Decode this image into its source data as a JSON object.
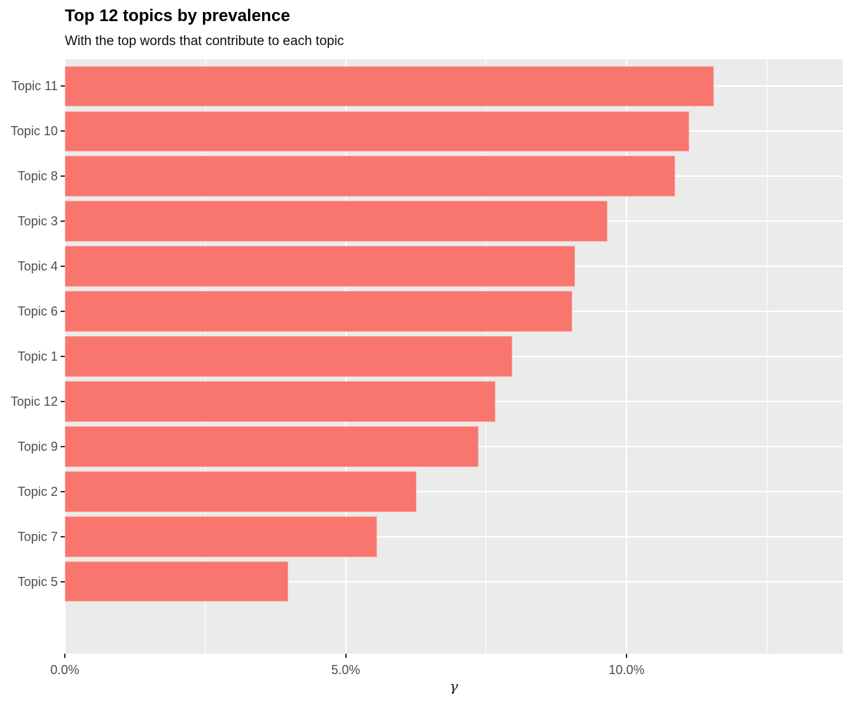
{
  "title": "Top 12 topics by prevalence",
  "subtitle": "With the top words that contribute to each topic",
  "chart_data": {
    "type": "bar",
    "orientation": "horizontal",
    "title": "Top 12 topics by prevalence",
    "subtitle": "With the top words that contribute to each topic",
    "categories": [
      "Topic 11",
      "Topic 10",
      "Topic 8",
      "Topic 3",
      "Topic 4",
      "Topic 6",
      "Topic 1",
      "Topic 12",
      "Topic 9",
      "Topic 2",
      "Topic 7",
      "Topic 5"
    ],
    "values": [
      11.56,
      11.12,
      10.87,
      9.66,
      9.08,
      9.03,
      7.97,
      7.67,
      7.36,
      6.26,
      5.56,
      3.98
    ],
    "value_unit": "%",
    "xlabel": "γ",
    "ylabel": "",
    "xlim": [
      0,
      13.85
    ],
    "x_major_ticks": [
      {
        "value": 0,
        "label": "0.0%"
      },
      {
        "value": 5,
        "label": "5.0%"
      },
      {
        "value": 10,
        "label": "10.0%"
      }
    ],
    "x_minor_ticks": [
      2.5,
      7.5,
      12.5
    ],
    "grid": "on",
    "legend": "none",
    "colors": {
      "bar_fill": "#F8766D",
      "bar_edge": "#FBA8A1",
      "panel_background": "#EBEBEB",
      "gridline": "#FFFFFF",
      "axis_text": "#4D4D4D",
      "tick_mark": "#333333",
      "title_text": "#000000"
    }
  }
}
